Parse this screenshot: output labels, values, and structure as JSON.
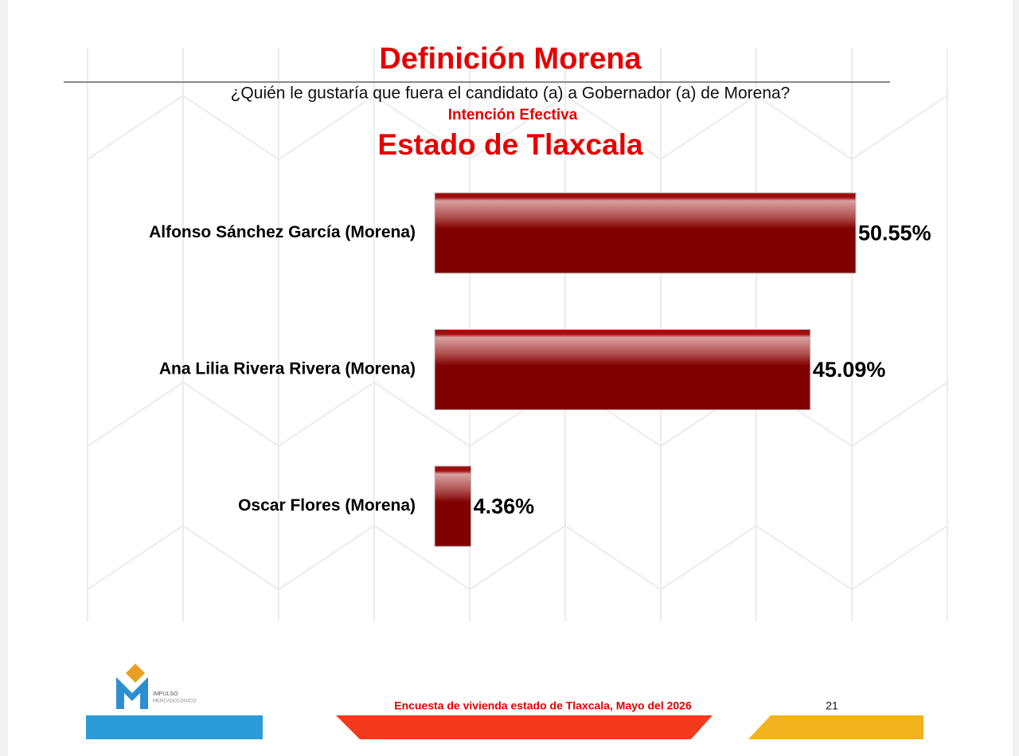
{
  "chart_data": {
    "type": "bar",
    "orientation": "horizontal",
    "title": "Definición Morena",
    "subtitle": "¿Quién le gustaría que fuera el candidato (a) a Gobernador (a) de Morena?",
    "subtitle2": "Intención Efectiva",
    "subtitle3": "Estado de Tlaxcala",
    "categories": [
      "Alfonso Sánchez García (Morena)",
      "Ana Lilia Rivera Rivera (Morena)",
      "Oscar Flores (Morena)"
    ],
    "values": [
      50.55,
      45.09,
      4.36
    ],
    "value_labels": [
      "50.55%",
      "45.09%",
      "4.36%"
    ],
    "color": "#800000"
  },
  "footer": {
    "survey": "Encuesta de vivienda estado de Tlaxcala, Mayo  del 2026",
    "page": "21",
    "logo": {
      "line1": "IMPULSO",
      "line2": "MERCADOLÓGICO"
    }
  }
}
